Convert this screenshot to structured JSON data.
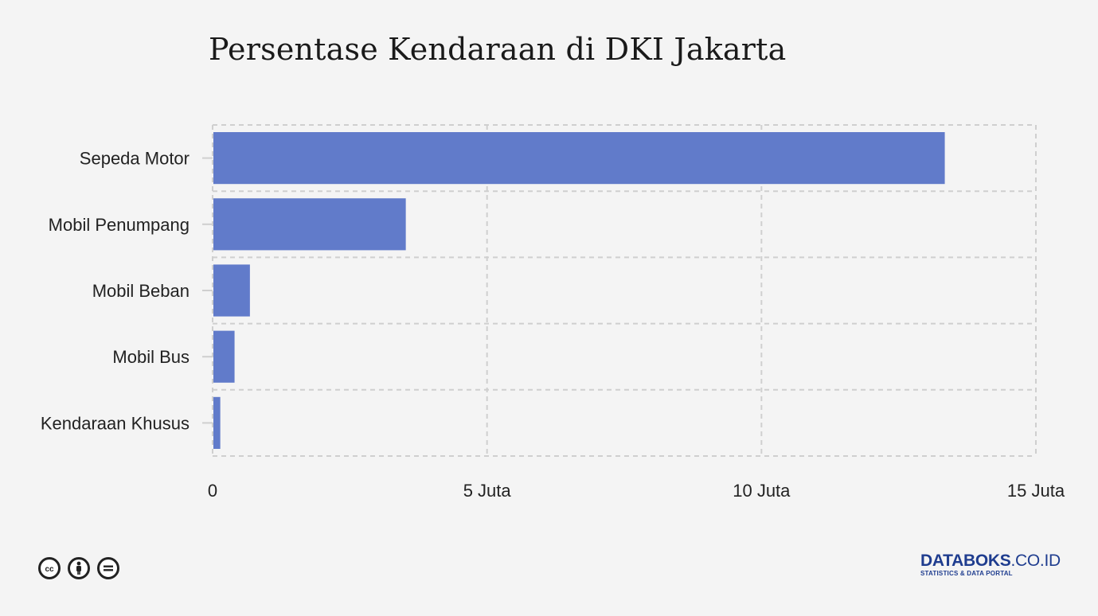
{
  "title": "Persentase Kendaraan di DKI Jakarta",
  "chart_data": {
    "type": "bar",
    "orientation": "horizontal",
    "title": "Persentase Kendaraan di DKI Jakarta",
    "xlabel": "",
    "ylabel": "",
    "categories": [
      "Sepeda Motor",
      "Mobil Penumpang",
      "Mobil Beban",
      "Mobil Bus",
      "Kendaraan Khusus"
    ],
    "values": [
      13340000,
      3520000,
      680000,
      400000,
      140000
    ],
    "xlim": [
      0,
      15000000
    ],
    "xticks": [
      0,
      5000000,
      10000000,
      15000000
    ],
    "xtick_labels": [
      "0",
      "5 Juta",
      "10 Juta",
      "15 Juta"
    ],
    "grid": true,
    "bar_color": "#617bca"
  },
  "footer": {
    "license_icons": [
      "cc-icon",
      "by-icon",
      "nd-icon"
    ],
    "brand_main": "DATABOKS",
    "brand_suffix": ".CO.ID",
    "brand_sub": "STATISTICS & DATA PORTAL",
    "brand_color": "#1f3d8f"
  }
}
